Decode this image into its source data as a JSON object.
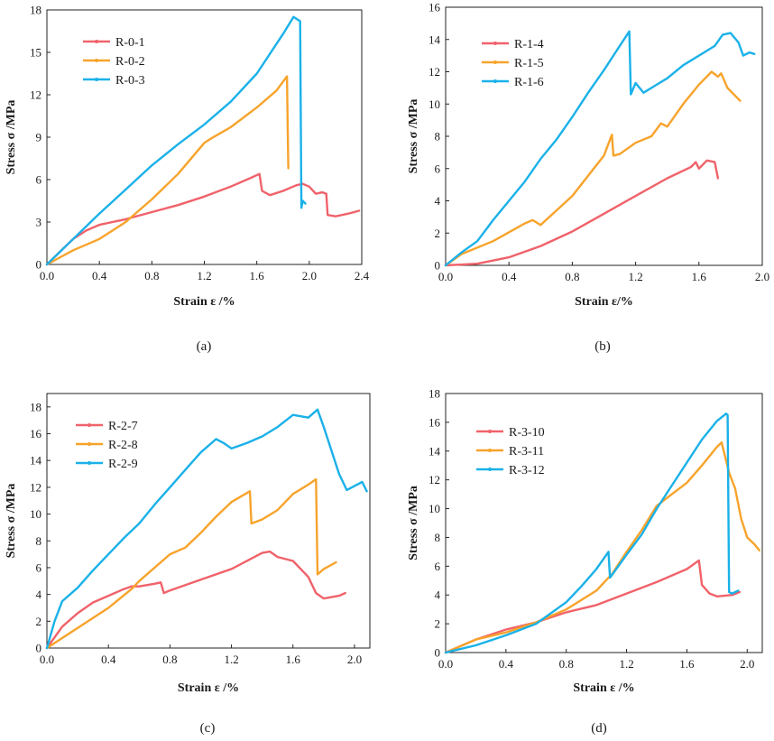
{
  "chart_data": [
    {
      "type": "line",
      "caption": "(a)",
      "xlabel": "Strain ε /%",
      "ylabel": "Stress σ /MPa",
      "xlim": [
        0,
        2.4
      ],
      "ylim": [
        0,
        18
      ],
      "xticks": [
        0.0,
        0.4,
        0.8,
        1.2,
        1.6,
        2.0,
        2.4
      ],
      "yticks": [
        0,
        3,
        6,
        9,
        12,
        15,
        18
      ],
      "xtick_labels": [
        "0.0",
        "0.4",
        "0.8",
        "1.2",
        "1.6",
        "2.0",
        "2.4"
      ],
      "ytick_labels": [
        "0",
        "3",
        "6",
        "9",
        "12",
        "15",
        "18"
      ],
      "legend_position": "top-left",
      "series": [
        {
          "name": "R-0-1",
          "color": "#f0626a",
          "x": [
            0,
            0.1,
            0.2,
            0.3,
            0.4,
            0.6,
            0.8,
            1.0,
            1.2,
            1.4,
            1.55,
            1.62,
            1.64,
            1.7,
            1.8,
            1.9,
            1.95,
            2.0,
            2.05,
            2.1,
            2.13,
            2.14,
            2.2,
            2.3,
            2.38
          ],
          "y": [
            0,
            0.9,
            1.8,
            2.4,
            2.8,
            3.2,
            3.7,
            4.2,
            4.8,
            5.5,
            6.1,
            6.4,
            5.2,
            4.9,
            5.2,
            5.6,
            5.7,
            5.5,
            5.0,
            5.1,
            5.0,
            3.5,
            3.4,
            3.6,
            3.8
          ]
        },
        {
          "name": "R-0-2",
          "color": "#f7a32b",
          "x": [
            0,
            0.2,
            0.4,
            0.6,
            0.8,
            1.0,
            1.2,
            1.25,
            1.4,
            1.6,
            1.75,
            1.83,
            1.84
          ],
          "y": [
            0,
            1.0,
            1.8,
            3.0,
            4.6,
            6.4,
            8.6,
            8.9,
            9.7,
            11.1,
            12.3,
            13.3,
            6.8
          ]
        },
        {
          "name": "R-0-3",
          "color": "#1ab1e8",
          "x": [
            0,
            0.2,
            0.4,
            0.6,
            0.8,
            1.0,
            1.2,
            1.4,
            1.6,
            1.8,
            1.88,
            1.93,
            1.94,
            1.95,
            1.97
          ],
          "y": [
            0,
            1.8,
            3.6,
            5.3,
            7.0,
            8.5,
            9.9,
            11.5,
            13.5,
            16.3,
            17.5,
            17.2,
            4.0,
            4.5,
            4.3
          ]
        }
      ]
    },
    {
      "type": "line",
      "caption": "(b)",
      "xlabel": "Strain ε/%",
      "ylabel": "Stress σ /MPa",
      "xlim": [
        0,
        2.0
      ],
      "ylim": [
        0,
        16
      ],
      "xticks": [
        0.0,
        0.4,
        0.8,
        1.2,
        1.6,
        2.0
      ],
      "yticks": [
        0,
        2,
        4,
        6,
        8,
        10,
        12,
        14,
        16
      ],
      "xtick_labels": [
        "0.0",
        "0.4",
        "0.8",
        "1.2",
        "1.6",
        "2.0"
      ],
      "ytick_labels": [
        "0",
        "2",
        "4",
        "6",
        "8",
        "10",
        "12",
        "14",
        "16"
      ],
      "legend_position": "top-left",
      "series": [
        {
          "name": "R-1-4",
          "color": "#f0626a",
          "x": [
            0,
            0.2,
            0.4,
            0.6,
            0.8,
            1.0,
            1.2,
            1.4,
            1.55,
            1.58,
            1.6,
            1.65,
            1.7,
            1.72
          ],
          "y": [
            0,
            0.1,
            0.5,
            1.2,
            2.1,
            3.2,
            4.3,
            5.4,
            6.1,
            6.4,
            6.0,
            6.5,
            6.4,
            5.4
          ]
        },
        {
          "name": "R-1-5",
          "color": "#f7a32b",
          "x": [
            0,
            0.1,
            0.3,
            0.5,
            0.55,
            0.6,
            0.8,
            1.0,
            1.05,
            1.06,
            1.1,
            1.2,
            1.3,
            1.36,
            1.4,
            1.5,
            1.6,
            1.68,
            1.72,
            1.74,
            1.78,
            1.82,
            1.86
          ],
          "y": [
            0,
            0.7,
            1.5,
            2.6,
            2.8,
            2.5,
            4.3,
            6.8,
            8.1,
            6.8,
            6.9,
            7.6,
            8.0,
            8.8,
            8.6,
            10.0,
            11.2,
            12.0,
            11.7,
            11.9,
            11.0,
            10.6,
            10.2
          ]
        },
        {
          "name": "R-1-6",
          "color": "#1ab1e8",
          "x": [
            0,
            0.1,
            0.2,
            0.3,
            0.4,
            0.5,
            0.6,
            0.7,
            0.8,
            0.9,
            1.0,
            1.1,
            1.16,
            1.17,
            1.2,
            1.25,
            1.3,
            1.4,
            1.5,
            1.6,
            1.7,
            1.75,
            1.8,
            1.85,
            1.88,
            1.92,
            1.95
          ],
          "y": [
            0,
            0.8,
            1.5,
            2.8,
            4.0,
            5.2,
            6.6,
            7.8,
            9.2,
            10.7,
            12.1,
            13.6,
            14.5,
            10.6,
            11.3,
            10.7,
            11.0,
            11.6,
            12.4,
            13.0,
            13.6,
            14.3,
            14.4,
            13.8,
            13.0,
            13.2,
            13.1
          ]
        }
      ]
    },
    {
      "type": "line",
      "caption": "(c)",
      "xlabel": "Strain ε /%",
      "ylabel": "Stress σ /MPa",
      "xlim": [
        0,
        2.1
      ],
      "ylim": [
        0,
        19
      ],
      "xticks": [
        0.0,
        0.4,
        0.8,
        1.2,
        1.6,
        2.0
      ],
      "yticks": [
        0,
        2,
        4,
        6,
        8,
        10,
        12,
        14,
        16,
        18
      ],
      "xtick_labels": [
        "0.0",
        "0.4",
        "0.8",
        "1.2",
        "1.6",
        "2.0"
      ],
      "ytick_labels": [
        "0",
        "2",
        "4",
        "6",
        "8",
        "10",
        "12",
        "14",
        "16",
        "18"
      ],
      "legend_position": "top-left",
      "series": [
        {
          "name": "R-2-7",
          "color": "#f0626a",
          "x": [
            0,
            0.1,
            0.2,
            0.3,
            0.4,
            0.5,
            0.55,
            0.6,
            0.7,
            0.74,
            0.76,
            0.8,
            1.0,
            1.2,
            1.4,
            1.45,
            1.5,
            1.6,
            1.7,
            1.75,
            1.8,
            1.9,
            1.94
          ],
          "y": [
            0,
            1.6,
            2.6,
            3.4,
            3.9,
            4.4,
            4.6,
            4.6,
            4.8,
            4.9,
            4.1,
            4.3,
            5.1,
            5.9,
            7.1,
            7.2,
            6.8,
            6.5,
            5.3,
            4.1,
            3.7,
            3.9,
            4.1
          ]
        },
        {
          "name": "R-2-8",
          "color": "#f7a32b",
          "x": [
            0,
            0.2,
            0.4,
            0.55,
            0.6,
            0.8,
            0.9,
            1.0,
            1.1,
            1.2,
            1.32,
            1.33,
            1.4,
            1.5,
            1.6,
            1.7,
            1.75,
            1.76,
            1.8,
            1.88
          ],
          "y": [
            0,
            1.5,
            3.0,
            4.4,
            5.0,
            7.0,
            7.5,
            8.6,
            9.8,
            10.9,
            11.7,
            9.3,
            9.6,
            10.3,
            11.5,
            12.2,
            12.6,
            5.5,
            5.9,
            6.4
          ]
        },
        {
          "name": "R-2-9",
          "color": "#1ab1e8",
          "x": [
            0,
            0.05,
            0.1,
            0.2,
            0.3,
            0.4,
            0.5,
            0.6,
            0.7,
            0.8,
            0.9,
            1.0,
            1.1,
            1.15,
            1.2,
            1.3,
            1.4,
            1.5,
            1.6,
            1.7,
            1.76,
            1.8,
            1.9,
            1.95,
            2.0,
            2.05,
            2.08
          ],
          "y": [
            0,
            2.0,
            3.5,
            4.5,
            5.8,
            7.0,
            8.2,
            9.3,
            10.7,
            12.0,
            13.3,
            14.6,
            15.6,
            15.3,
            14.9,
            15.3,
            15.8,
            16.5,
            17.4,
            17.2,
            17.8,
            16.5,
            13.0,
            11.8,
            12.1,
            12.4,
            11.7
          ]
        }
      ]
    },
    {
      "type": "line",
      "caption": "(d)",
      "xlabel": "Strain ε /%",
      "ylabel": "Stress σ /MPa",
      "xlim": [
        0,
        2.1
      ],
      "ylim": [
        0,
        18
      ],
      "xticks": [
        0.0,
        0.4,
        0.8,
        1.2,
        1.6,
        2.0
      ],
      "yticks": [
        0,
        2,
        4,
        6,
        8,
        10,
        12,
        14,
        16,
        18
      ],
      "xtick_labels": [
        "0.0",
        "0.4",
        "0.8",
        "1.2",
        "1.6",
        "2.0"
      ],
      "ytick_labels": [
        "0",
        "2",
        "4",
        "6",
        "8",
        "10",
        "12",
        "14",
        "16",
        "18"
      ],
      "legend_position": "top-left",
      "series": [
        {
          "name": "R-3-10",
          "color": "#f0626a",
          "x": [
            0,
            0.2,
            0.4,
            0.6,
            0.8,
            1.0,
            1.2,
            1.4,
            1.6,
            1.68,
            1.7,
            1.75,
            1.8,
            1.9,
            1.95
          ],
          "y": [
            0,
            0.9,
            1.6,
            2.1,
            2.8,
            3.3,
            4.1,
            4.9,
            5.8,
            6.4,
            4.7,
            4.1,
            3.9,
            4.0,
            4.2
          ]
        },
        {
          "name": "R-3-11",
          "color": "#f7a32b",
          "x": [
            0,
            0.2,
            0.4,
            0.6,
            0.8,
            1.0,
            1.08,
            1.1,
            1.2,
            1.3,
            1.4,
            1.5,
            1.6,
            1.7,
            1.8,
            1.83,
            1.88,
            1.92,
            1.96,
            2.0,
            2.05,
            2.08
          ],
          "y": [
            0,
            0.9,
            1.4,
            2.1,
            3.0,
            4.3,
            5.2,
            5.4,
            7.0,
            8.5,
            10.2,
            11.0,
            11.8,
            13.0,
            14.3,
            14.6,
            12.5,
            11.4,
            9.3,
            8.0,
            7.5,
            7.1
          ]
        },
        {
          "name": "R-3-12",
          "color": "#1ab1e8",
          "x": [
            0,
            0.2,
            0.4,
            0.6,
            0.8,
            0.9,
            1.0,
            1.08,
            1.09,
            1.2,
            1.3,
            1.4,
            1.5,
            1.6,
            1.7,
            1.8,
            1.86,
            1.87,
            1.88,
            1.9,
            1.94
          ],
          "y": [
            0,
            0.5,
            1.2,
            2.0,
            3.5,
            4.6,
            5.8,
            7.0,
            5.2,
            6.8,
            8.2,
            10.0,
            11.6,
            13.2,
            14.8,
            16.1,
            16.6,
            16.5,
            4.2,
            4.1,
            4.3
          ]
        }
      ]
    }
  ]
}
